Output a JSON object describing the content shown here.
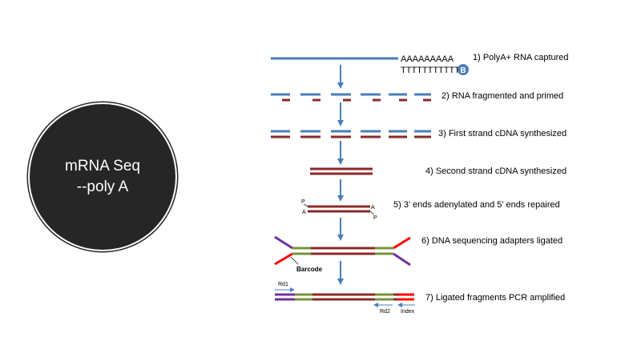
{
  "circle": {
    "line1": "mRNA Seq",
    "line2": "--poly A"
  },
  "steps": [
    "1) PolyA+ RNA captured",
    "2) RNA fragmented and primed",
    "3) First strand cDNA synthesized",
    "4) Second strand cDNA synthesized",
    "5) 3’ ends adenylated and 5’ ends repaired",
    "6) DNA sequencing adapters ligated",
    "7) Ligated fragments PCR amplified"
  ],
  "labels": {
    "polyA": "AAAAAAAAA",
    "polyT": "TTTTTTTTTTT",
    "bead": "B",
    "p_top": "P",
    "a_left": "A",
    "a_right": "A",
    "p_bottom": "P",
    "barcode": "Barcode",
    "rd1": "Rd1",
    "rd2": "Rd2",
    "index": "Index"
  },
  "colors": {
    "rna_blue": "#4a7ebb",
    "dna_red": "#8b2a2a",
    "adapter_green": "#77933c",
    "adapter_purple": "#7030a0",
    "adapter_red": "#ff0000",
    "arrow_blue": "#4a7ebb",
    "circle_fill": "#262626"
  }
}
